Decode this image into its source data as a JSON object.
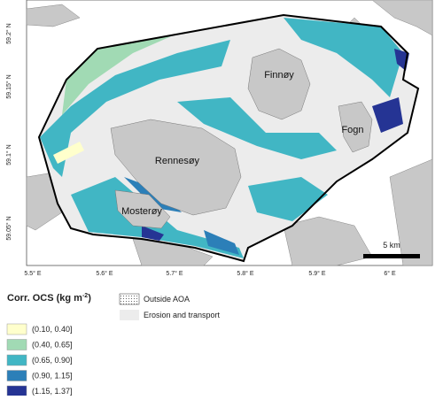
{
  "map": {
    "lat_labels": [
      "59.2° N",
      "59.15° N",
      "59.1° N",
      "59.05° N"
    ],
    "lon_labels": [
      "5.5° E",
      "5.6° E",
      "5.7° E",
      "5.8° E",
      "5.9° E",
      "6° E"
    ],
    "places": [
      "Finnøy",
      "Fogn",
      "Rennesøy",
      "Mosterøy"
    ],
    "scale_label": "5 km"
  },
  "legend": {
    "title": "Corr. OCS (kg m",
    "title_sup": "-2",
    "title_end": ")",
    "classes": [
      {
        "label": "(0.10, 0.40]",
        "color": "#ffffcc"
      },
      {
        "label": "(0.40, 0.65]",
        "color": "#a1dab4"
      },
      {
        "label": "(0.65, 0.90]",
        "color": "#41b6c4"
      },
      {
        "label": "(0.90, 1.15]",
        "color": "#2c7fb8"
      },
      {
        "label": "(1.15, 1.37]",
        "color": "#253494"
      }
    ],
    "other": [
      "Outside AOA",
      "Erosion and transport"
    ]
  }
}
